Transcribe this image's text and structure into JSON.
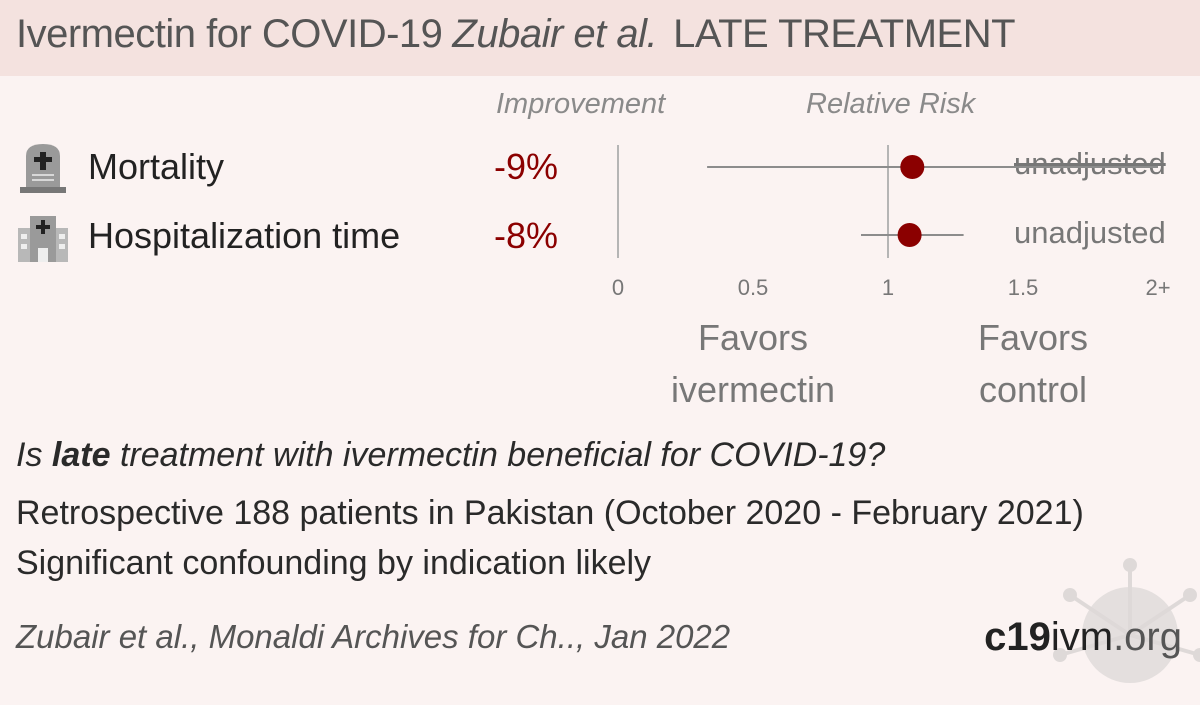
{
  "header": {
    "title": "Ivermectin for COVID-19",
    "authors": "Zubair et al.",
    "stage": "LATE TREATMENT"
  },
  "columns": {
    "improvement": "Improvement",
    "relative_risk": "Relative Risk"
  },
  "rows": [
    {
      "label": "Mortality",
      "icon": "tombstone-icon",
      "improvement": "-9%",
      "note": "unadjusted"
    },
    {
      "label": "Hospitalization time",
      "icon": "hospital-icon",
      "improvement": "-8%",
      "note": "unadjusted"
    }
  ],
  "favors": {
    "left": "Favors\nivermectin",
    "right": "Favors\ncontrol"
  },
  "question": {
    "prefix": "Is ",
    "emph": "late",
    "suffix": " treatment with ivermectin beneficial for COVID-19?"
  },
  "details": [
    "Retrospective 188 patients in Pakistan (October 2020 - February 2021)",
    "Significant confounding by indication likely"
  ],
  "citation": "Zubair et al., Monaldi Archives for Ch.., Jan 2022",
  "brand": {
    "bold": "c19",
    "rest": "ivm",
    "suffix": ".org"
  },
  "colors": {
    "point": "#8b0000",
    "improvement": "#8b0000",
    "header_bg": "#f4e2df",
    "page_bg": "#fbf3f2"
  },
  "chart_data": {
    "type": "forest",
    "xlabel": "",
    "xticks": [
      "0",
      "0.5",
      "1",
      "1.5",
      "2+"
    ],
    "xlim": [
      0,
      2
    ],
    "reference_line": 1,
    "series": [
      {
        "outcome": "Mortality",
        "rr": 1.09,
        "ci_low": 0.33,
        "ci_high": 2.0,
        "note": "unadjusted"
      },
      {
        "outcome": "Hospitalization time",
        "rr": 1.08,
        "ci_low": 0.9,
        "ci_high": 1.28,
        "note": "unadjusted"
      }
    ]
  }
}
